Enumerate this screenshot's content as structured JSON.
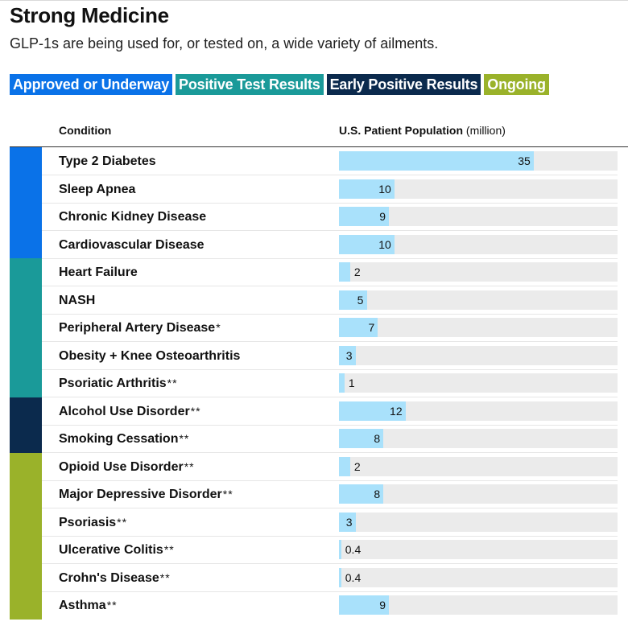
{
  "title": "Strong Medicine",
  "subtitle": "GLP-1s are being used for, or tested on, a wide variety of ailments.",
  "legend": [
    {
      "label": "Approved or Underway",
      "color": "#0a72e8"
    },
    {
      "label": "Positive Test Results",
      "color": "#1a9a99"
    },
    {
      "label": "Early Positive Results",
      "color": "#0b2a4d"
    },
    {
      "label": "Ongoing",
      "color": "#9ab22a"
    }
  ],
  "headers": {
    "condition": "Condition",
    "population": "U.S. Patient Population",
    "population_unit": "(million)"
  },
  "chart_data": {
    "type": "bar",
    "xlabel": "U.S. Patient Population (million)",
    "xlim": [
      0,
      50
    ],
    "rows": [
      {
        "condition": "Type 2 Diabetes",
        "note": "",
        "value": 35,
        "value_label": "35",
        "status": 0
      },
      {
        "condition": "Sleep Apnea",
        "note": "",
        "value": 10,
        "value_label": "10",
        "status": 0
      },
      {
        "condition": "Chronic Kidney Disease",
        "note": "",
        "value": 9,
        "value_label": "9",
        "status": 0
      },
      {
        "condition": "Cardiovascular Disease",
        "note": "",
        "value": 10,
        "value_label": "10",
        "status": 0
      },
      {
        "condition": "Heart Failure",
        "note": "",
        "value": 2,
        "value_label": "2",
        "status": 1
      },
      {
        "condition": "NASH",
        "note": "",
        "value": 5,
        "value_label": "5",
        "status": 1
      },
      {
        "condition": "Peripheral Artery Disease",
        "note": "*",
        "value": 7,
        "value_label": "7",
        "status": 1
      },
      {
        "condition": "Obesity + Knee Osteoarthritis",
        "note": "",
        "value": 3,
        "value_label": "3",
        "status": 1
      },
      {
        "condition": "Psoriatic Arthritis",
        "note": "**",
        "value": 1,
        "value_label": "1",
        "status": 1
      },
      {
        "condition": "Alcohol Use Disorder",
        "note": "**",
        "value": 12,
        "value_label": "12",
        "status": 2
      },
      {
        "condition": "Smoking Cessation",
        "note": "**",
        "value": 8,
        "value_label": "8",
        "status": 2
      },
      {
        "condition": "Opioid Use Disorder",
        "note": "**",
        "value": 2,
        "value_label": "2",
        "status": 3
      },
      {
        "condition": "Major Depressive Disorder",
        "note": "**",
        "value": 8,
        "value_label": "8",
        "status": 3
      },
      {
        "condition": "Psoriasis",
        "note": "**",
        "value": 3,
        "value_label": "3",
        "status": 3
      },
      {
        "condition": "Ulcerative Colitis",
        "note": "**",
        "value": 0.4,
        "value_label": "0.4",
        "status": 3
      },
      {
        "condition": "Crohn's Disease",
        "note": "**",
        "value": 0.4,
        "value_label": "0.4",
        "status": 3
      },
      {
        "condition": "Asthma",
        "note": "**",
        "value": 9,
        "value_label": "9",
        "status": 3
      }
    ]
  }
}
